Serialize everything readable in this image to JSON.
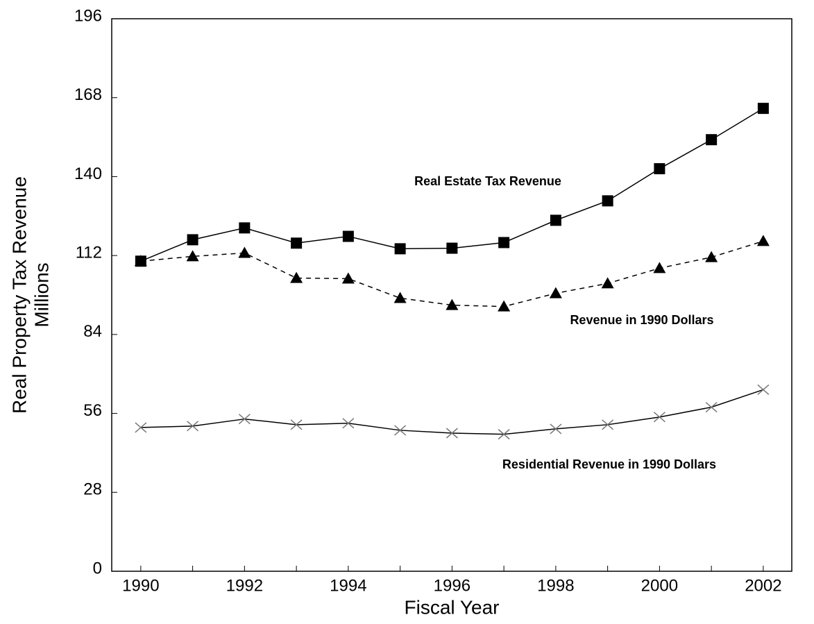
{
  "chart_data": {
    "type": "line",
    "ylabel": [
      "Real Property Tax Revenue",
      "Millions"
    ],
    "xlabel": "Fiscal Year",
    "x": [
      1990,
      1991,
      1992,
      1993,
      1994,
      1995,
      1996,
      1997,
      1998,
      1999,
      2000,
      2001,
      2002
    ],
    "series": [
      {
        "name": "Real Estate Tax Revenue",
        "color": "#000000",
        "marker": "square",
        "dashed": false,
        "values": [
          110,
          117.6,
          121.8,
          116.4,
          118.8,
          114.4,
          114.6,
          116.6,
          124.5,
          131.4,
          142.8,
          153.1,
          164.2
        ]
      },
      {
        "name": "Revenue in 1990 Dollars",
        "color": "#000000",
        "marker": "triangle",
        "dashed": true,
        "values": [
          110,
          111.7,
          112.9,
          104,
          103.8,
          96.9,
          94.4,
          93.9,
          98.6,
          102.1,
          107.5,
          111.4,
          117.1
        ]
      },
      {
        "name": "Residential Revenue in 1990 Dollars",
        "color": "#000000",
        "marker": "x",
        "dashed": false,
        "values": [
          51,
          51.5,
          54,
          52,
          52.5,
          50,
          49,
          48.6,
          50.5,
          52,
          54.7,
          58.2,
          64.4
        ]
      }
    ],
    "xlim": [
      1989.44,
      2002.55
    ],
    "xticks": [
      1990,
      1992,
      1994,
      1996,
      1998,
      2000,
      2002
    ],
    "xminorticks": [
      1991,
      1993,
      1995,
      1997,
      1999,
      2001
    ],
    "ylim": [
      0,
      196
    ],
    "yticks": [
      0,
      28,
      56,
      84,
      112,
      140,
      168,
      196
    ],
    "grid": false
  }
}
